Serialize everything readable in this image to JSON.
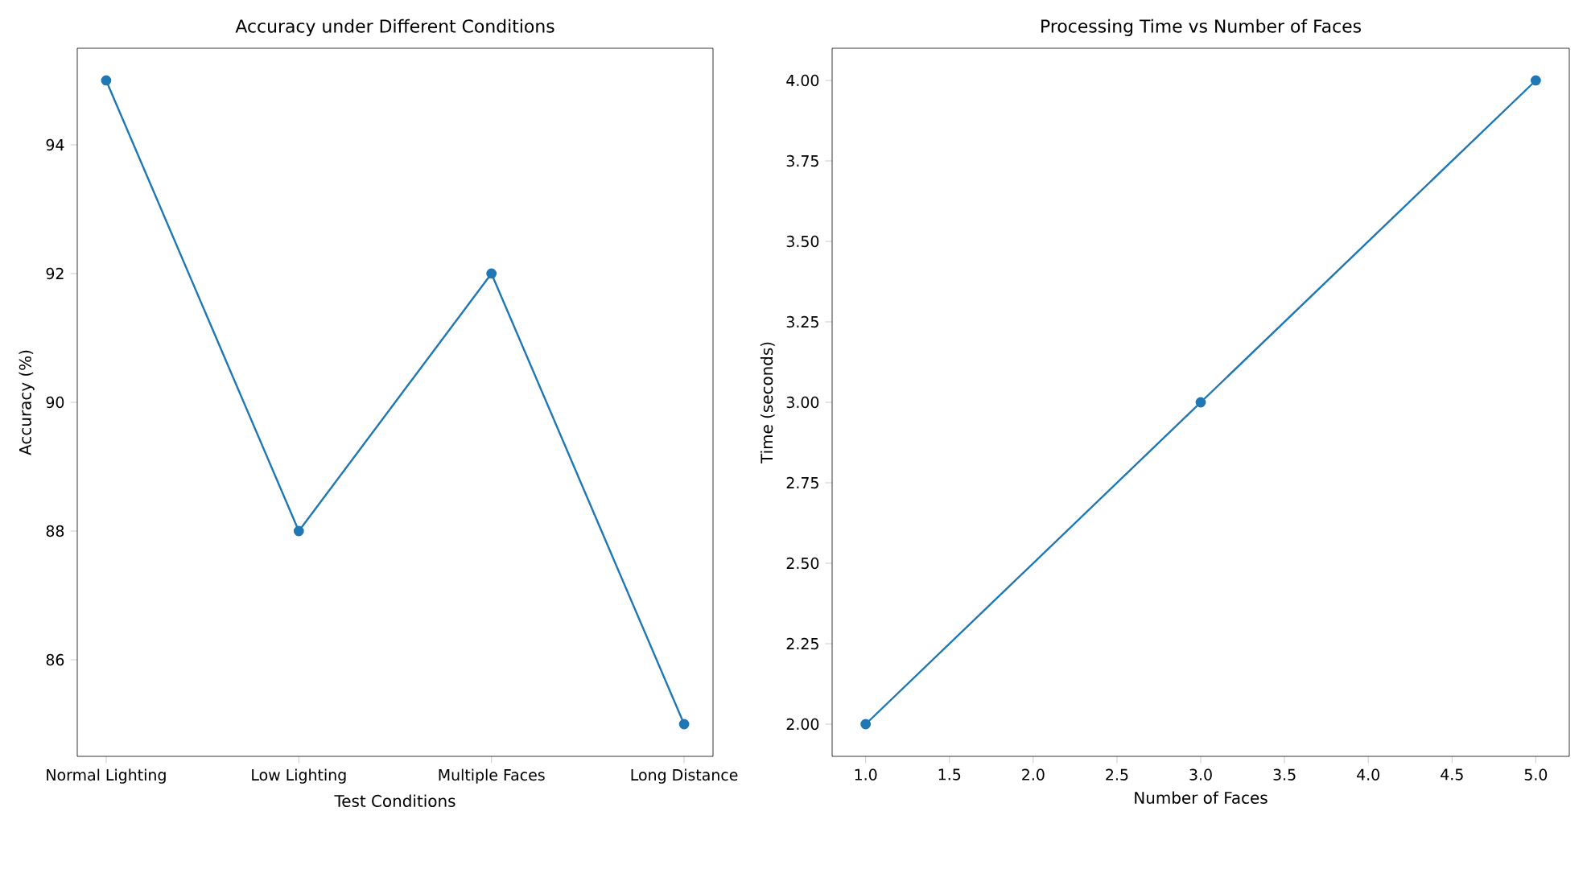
{
  "chart_data": [
    {
      "type": "line",
      "title": "Accuracy under Different Conditions",
      "xlabel": "Test Conditions",
      "ylabel": "Accuracy (%)",
      "categories": [
        "Normal Lighting",
        "Low Lighting",
        "Multiple Faces",
        "Long Distance"
      ],
      "series": [
        {
          "color": "#1f77b4",
          "values": [
            95,
            88,
            92,
            85
          ]
        }
      ],
      "ylim": [
        84.5,
        95.5
      ],
      "yticks": [
        86,
        88,
        90,
        92,
        94
      ],
      "marker": "circle",
      "line_style": "solid",
      "grid": false
    },
    {
      "type": "line",
      "title": "Processing Time vs Number of Faces",
      "xlabel": "Number of Faces",
      "ylabel": "Time (seconds)",
      "x": [
        1,
        3,
        5
      ],
      "series": [
        {
          "color": "#1f77b4",
          "values": [
            2,
            3,
            4
          ]
        }
      ],
      "xlim": [
        0.8,
        5.2
      ],
      "xticks": [
        {
          "value": 1,
          "label": "1.0"
        },
        {
          "value": 1.5,
          "label": "1.5"
        },
        {
          "value": 2,
          "label": "2.0"
        },
        {
          "value": 2.5,
          "label": "2.5"
        },
        {
          "value": 3,
          "label": "3.0"
        },
        {
          "value": 3.5,
          "label": "3.5"
        },
        {
          "value": 4,
          "label": "4.0"
        },
        {
          "value": 4.5,
          "label": "4.5"
        },
        {
          "value": 5,
          "label": "5.0"
        }
      ],
      "ylim": [
        1.9,
        4.1
      ],
      "yticks": [
        {
          "value": 2,
          "label": "2.00"
        },
        {
          "value": 2.25,
          "label": "2.25"
        },
        {
          "value": 2.5,
          "label": "2.50"
        },
        {
          "value": 2.75,
          "label": "2.75"
        },
        {
          "value": 3,
          "label": "3.00"
        },
        {
          "value": 3.25,
          "label": "3.25"
        },
        {
          "value": 3.5,
          "label": "3.50"
        },
        {
          "value": 3.75,
          "label": "3.75"
        },
        {
          "value": 4,
          "label": "4.00"
        }
      ],
      "marker": "circle",
      "line_style": "solid",
      "grid": false
    }
  ]
}
